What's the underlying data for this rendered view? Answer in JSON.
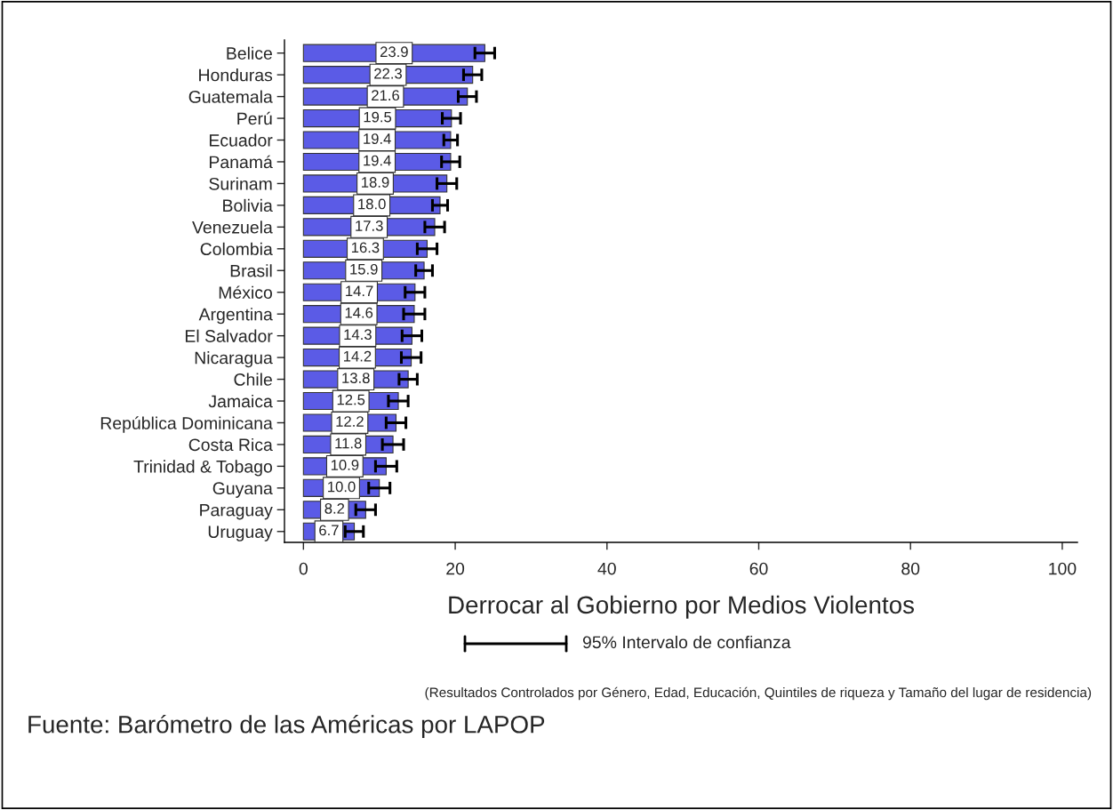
{
  "chart_data": {
    "type": "bar",
    "orientation": "horizontal",
    "xlabel": "Derrocar al Gobierno por Medios Violentos",
    "categories": [
      "Belice",
      "Honduras",
      "Guatemala",
      "Perú",
      "Ecuador",
      "Panamá",
      "Surinam",
      "Bolivia",
      "Venezuela",
      "Colombia",
      "Brasil",
      "México",
      "Argentina",
      "El Salvador",
      "Nicaragua",
      "Chile",
      "Jamaica",
      "República Dominicana",
      "Costa Rica",
      "Trinidad & Tobago",
      "Guyana",
      "Paraguay",
      "Uruguay"
    ],
    "values": [
      23.9,
      22.3,
      21.6,
      19.5,
      19.4,
      19.4,
      18.9,
      18.0,
      17.3,
      16.3,
      15.9,
      14.7,
      14.6,
      14.3,
      14.2,
      13.8,
      12.5,
      12.2,
      11.8,
      10.9,
      10.0,
      8.2,
      6.7
    ],
    "errors": [
      1.3,
      1.2,
      1.2,
      1.2,
      0.9,
      1.2,
      1.3,
      1.0,
      1.3,
      1.3,
      1.1,
      1.3,
      1.4,
      1.3,
      1.3,
      1.2,
      1.3,
      1.3,
      1.4,
      1.4,
      1.4,
      1.3,
      1.2
    ],
    "color": "#5b5be6",
    "value_labels": [
      "23.9",
      "22.3",
      "21.6",
      "19.5",
      "19.4",
      "19.4",
      "18.9",
      "18.0",
      "17.3",
      "16.3",
      "15.9",
      "14.7",
      "14.6",
      "14.3",
      "14.2",
      "13.8",
      "12.5",
      "12.2",
      "11.8",
      "10.9",
      "10.0",
      "8.2",
      "6.7"
    ],
    "xlim": [
      -2.5,
      102
    ],
    "xticks": [
      0,
      20,
      40,
      60,
      80,
      100
    ],
    "grid": false,
    "annotations": [
      "95% Intervalo de confianza",
      "(Resultados Controlados por Género, Edad, Educación, Quintiles de riqueza y Tamaño del lugar de residencia)",
      "Fuente: Barómetro de las Américas por LAPOP"
    ]
  }
}
